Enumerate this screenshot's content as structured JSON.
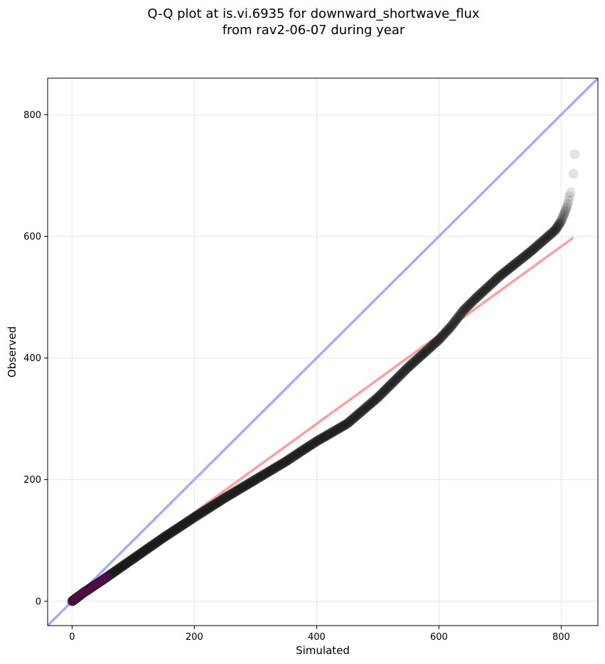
{
  "chart_data": {
    "type": "scatter",
    "title_lines": [
      "Q-Q plot at is.vi.6935 for downward_shortwave_flux",
      "from rav2-06-07 during year"
    ],
    "xlabel": "Simulated",
    "ylabel": "Observed",
    "xlim": [
      -40,
      860
    ],
    "ylim": [
      -40,
      860
    ],
    "x_ticks": [
      0,
      200,
      400,
      600,
      800
    ],
    "y_ticks": [
      0,
      200,
      400,
      600,
      800
    ],
    "grid": true,
    "colors": {
      "points": "#1a1a1a",
      "one_to_one_line": "#aaaaff",
      "fit_line": "#ff9f9f",
      "low_points_red": "#8b0000",
      "low_points_blue": "#1c1c8c"
    },
    "reference_lines": [
      {
        "role": "one-to-one",
        "x": [
          -40,
          860
        ],
        "y": [
          -40,
          860
        ]
      },
      {
        "role": "fit",
        "x": [
          0,
          820
        ],
        "y": [
          0,
          598
        ]
      }
    ],
    "quantile_curve": {
      "x": [
        0,
        20,
        50,
        100,
        150,
        200,
        250,
        300,
        350,
        380,
        400,
        450,
        500,
        550,
        600,
        620,
        640,
        660,
        700,
        750,
        790,
        800,
        810,
        815
      ],
      "y": [
        0,
        15,
        35,
        70,
        105,
        138,
        170,
        200,
        230,
        250,
        263,
        292,
        335,
        385,
        430,
        452,
        478,
        498,
        535,
        575,
        610,
        625,
        650,
        672
      ]
    },
    "outliers": [
      {
        "x": 820,
        "y": 703
      },
      {
        "x": 822,
        "y": 735
      }
    ]
  }
}
